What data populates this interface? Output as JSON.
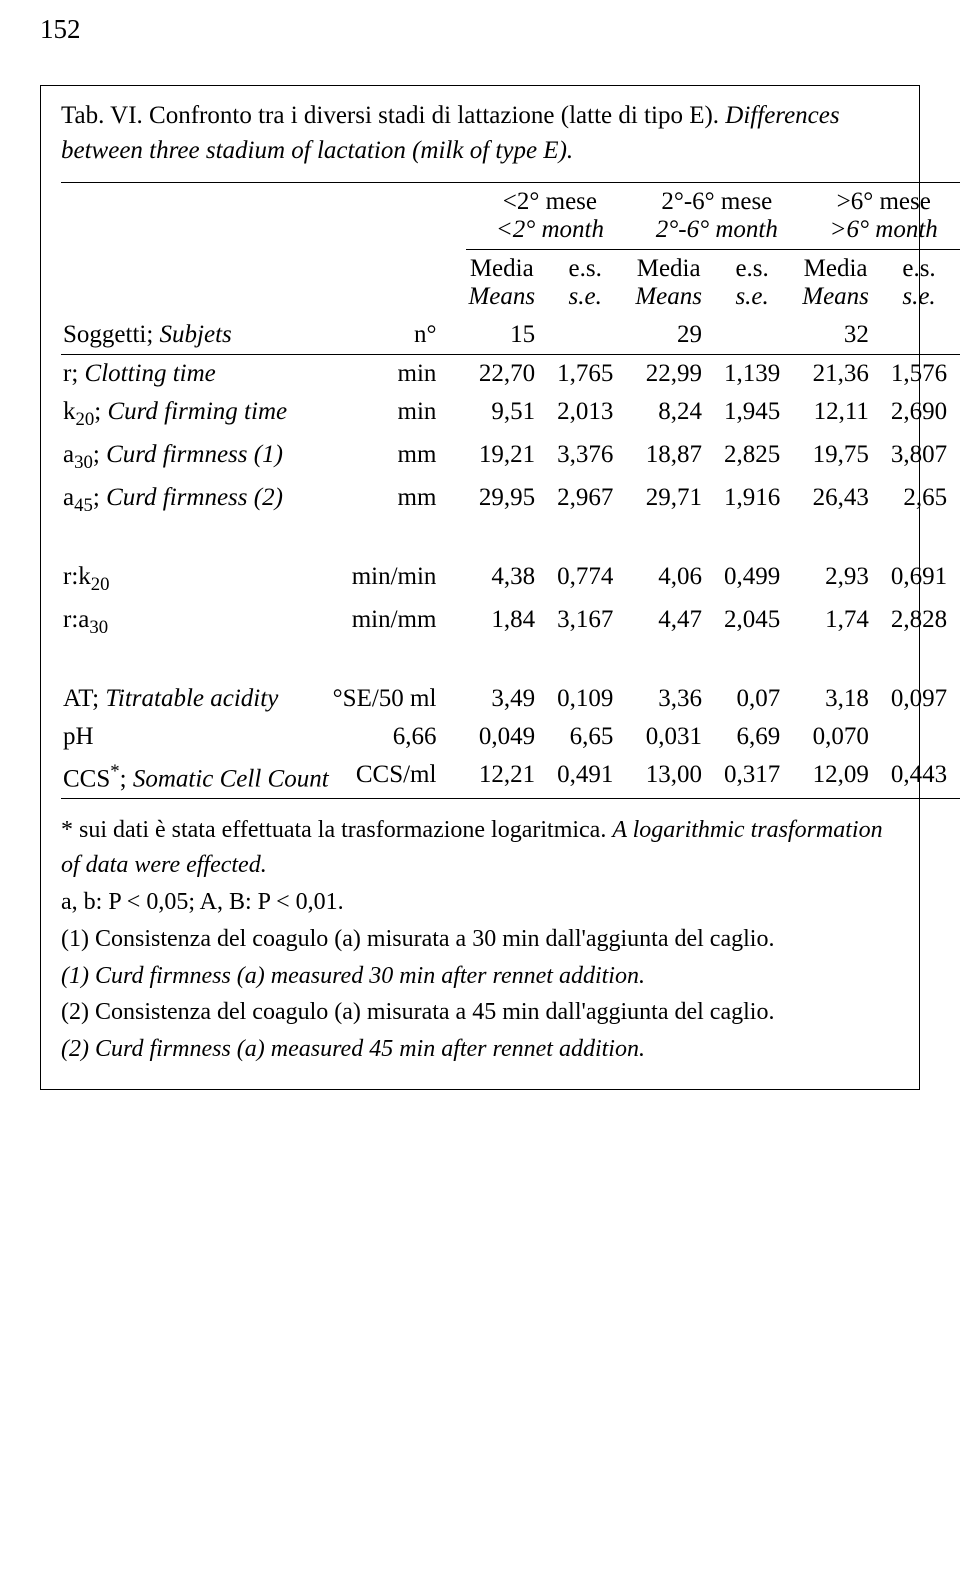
{
  "page_number": "152",
  "caption_it": "Tab. VI. Confronto tra i diversi stadi di lattazione (latte di tipo E).",
  "caption_en": "Differences between three stadium of lactation (milk of type E).",
  "groups": {
    "g1_it": "<2° mese",
    "g1_en": "<2° month",
    "g2_it": "2°-6° mese",
    "g2_en": "2°-6° month",
    "g3_it": ">6° mese",
    "g3_en": ">6° month"
  },
  "col_headers": {
    "media": "Media",
    "means": "Means",
    "es": "e.s.",
    "se": "s.e."
  },
  "subjets_it": "Soggetti;",
  "subjets_en": "Subjets",
  "n_label": "n°",
  "n": {
    "g1": "15",
    "g2": "29",
    "g3": "32"
  },
  "rows": [
    {
      "label_it": "r;",
      "label_en_html": "<span class=\"italic\">Clotting time</span>",
      "unit": "min",
      "m1": "22,70",
      "s1": "1,765",
      "m2": "22,99",
      "s2": "1,139",
      "m3": "21,36",
      "s3": "1,576"
    },
    {
      "label_it": "k<span class=\"sub\">20</span>;",
      "label_en_html": "<span class=\"italic\">Curd firming time</span>",
      "unit": "min",
      "m1": "9,51",
      "s1": "2,013",
      "m2": "8,24",
      "s2": "1,945",
      "m3": "12,11",
      "s3": "2,690"
    },
    {
      "label_it": "a<span class=\"sub\">30</span>;",
      "label_en_html": "<span class=\"italic\">Curd firmness (1)</span>",
      "unit": "mm",
      "m1": "19,21",
      "s1": "3,376",
      "m2": "18,87",
      "s2": "2,825",
      "m3": "19,75",
      "s3": "3,807"
    },
    {
      "label_it": "a<span class=\"sub\">45</span>;",
      "label_en_html": "<span class=\"italic\">Curd firmness (2)</span>",
      "unit": "mm",
      "m1": "29,95",
      "s1": "2,967",
      "m2": "29,71",
      "s2": "1,916",
      "m3": "26,43",
      "s3": "2,65"
    }
  ],
  "rows2": [
    {
      "label_html": "r:k<span class=\"sub\">20</span>",
      "unit": "min/min",
      "m1": "4,38",
      "s1": "0,774",
      "m2": "4,06",
      "s2": "0,499",
      "m3": "2,93",
      "s3": "0,691"
    },
    {
      "label_html": "r:a<span class=\"sub\">30</span>",
      "unit": "min/mm",
      "m1": "1,84",
      "s1": "3,167",
      "m2": "4,47",
      "s2": "2,045",
      "m3": "1,74",
      "s3": "2,828"
    }
  ],
  "rows3": [
    {
      "label_it": "AT;",
      "label_en_html": "<span class=\"italic\">Titratable acidity</span>",
      "unit": "°SE/50 ml",
      "m1": "3,49",
      "s1": "0,109",
      "m2": "3,36",
      "s2": "0,07",
      "m3": "3,18",
      "s3": "0,097"
    },
    {
      "label_it": "pH",
      "label_en_html": "",
      "unit": "6,66",
      "m1": "0,049",
      "s1": "6,65",
      "m2": "0,031",
      "s2": "6,69",
      "m3": "0,070",
      "s3": ""
    },
    {
      "label_it": "CCS<span class=\"sup\">*</span>;",
      "label_en_html": "<span class=\"italic\">Somatic Cell Count</span>",
      "unit": "CCS/ml",
      "m1": "12,21",
      "s1": "0,491",
      "m2": "13,00",
      "s2": "0,317",
      "m3": "12,09",
      "s3": "0,443"
    }
  ],
  "footnotes": {
    "f1_it": "* sui dati è stata effettuata la trasformazione logaritmica.",
    "f1_en": "A logarithmic trasformation of data were effected.",
    "f2": "a, b: P < 0,05; A, B: P < 0,01.",
    "f3": "(1) Consistenza del coagulo (a) misurata a 30 min dall'aggiunta del caglio.",
    "f4": "(1) Curd firmness (a) measured 30 min after rennet addition.",
    "f5": "(2) Consistenza del coagulo (a) misurata a 45 min dall'aggiunta del caglio.",
    "f6": "(2) Curd firmness (a) measured 45 min after rennet addition."
  },
  "colors": {
    "text": "#000000",
    "border": "#000000",
    "background": "#ffffff"
  },
  "typography": {
    "body_font": "serif",
    "body_size_pt": 18
  }
}
